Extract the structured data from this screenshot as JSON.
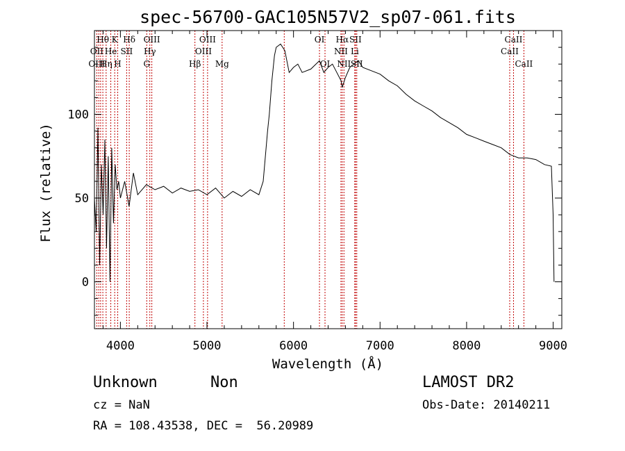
{
  "chart_data": {
    "type": "line",
    "title": "spec-56700-GAC105N57V2_sp07-061.fits",
    "xlabel": "Wavelength (Å)",
    "ylabel": "Flux (relative)",
    "xlim": [
      3700,
      9100
    ],
    "ylim": [
      -28,
      150
    ],
    "x_ticks": [
      4000,
      5000,
      6000,
      7000,
      8000,
      9000
    ],
    "x_tick_labels": [
      "4000",
      "5000",
      "6000",
      "7000",
      "8000",
      "9000"
    ],
    "y_ticks": [
      0,
      50,
      100
    ],
    "y_tick_labels": [
      "0",
      "50",
      "100"
    ],
    "grid": false,
    "legend": "none",
    "line_color": "#000000",
    "marker_color": "#c00000",
    "series": [
      {
        "x": [
          3700,
          3720,
          3740,
          3760,
          3780,
          3800,
          3820,
          3840,
          3860,
          3880,
          3900,
          3920,
          3940,
          3960,
          3980,
          4000,
          4050,
          4100,
          4150,
          4200,
          4300,
          4400,
          4500,
          4600,
          4700,
          4800,
          4900,
          5000,
          5100,
          5200,
          5300,
          5400,
          5500,
          5600,
          5650,
          5700,
          5720,
          5750,
          5780,
          5800,
          5850,
          5900,
          5950,
          6000,
          6050,
          6100,
          6200,
          6300,
          6350,
          6400,
          6450,
          6500,
          6550,
          6563,
          6600,
          6650,
          6700,
          6750,
          6800,
          6900,
          7000,
          7100,
          7200,
          7300,
          7400,
          7500,
          7600,
          7700,
          7800,
          7900,
          8000,
          8100,
          8200,
          8300,
          8400,
          8500,
          8600,
          8700,
          8800,
          8900,
          8980,
          9000,
          9010
        ],
        "y": [
          50,
          30,
          92,
          10,
          70,
          40,
          85,
          20,
          75,
          0,
          80,
          35,
          70,
          55,
          60,
          50,
          60,
          45,
          65,
          52,
          58,
          55,
          57,
          53,
          56,
          54,
          55,
          52,
          56,
          50,
          54,
          51,
          55,
          52,
          60,
          90,
          100,
          120,
          135,
          140,
          142,
          138,
          125,
          128,
          130,
          125,
          127,
          132,
          125,
          128,
          130,
          125,
          120,
          116,
          122,
          128,
          130,
          132,
          128,
          126,
          124,
          120,
          117,
          112,
          108,
          105,
          102,
          98,
          95,
          92,
          88,
          86,
          84,
          82,
          80,
          76,
          74,
          74,
          73,
          70,
          69,
          40,
          0
        ]
      }
    ],
    "annotations": [
      {
        "label": "Hθ",
        "x": 3797,
        "row": 1
      },
      {
        "label": "OII",
        "x": 3727,
        "row": 2
      },
      {
        "label": "OIII",
        "x": 3727,
        "row": 3
      },
      {
        "label": "He",
        "x": 3889,
        "row": 2
      },
      {
        "label": "Hη",
        "x": 3835,
        "row": 3
      },
      {
        "label": "K",
        "x": 3934,
        "row": 1
      },
      {
        "label": "H",
        "x": 3969,
        "row": 3
      },
      {
        "label": "SII",
        "x": 4072,
        "row": 2
      },
      {
        "label": "Hδ",
        "x": 4102,
        "row": 1
      },
      {
        "label": "OIII",
        "x": 4363,
        "row": 1
      },
      {
        "label": "Hγ",
        "x": 4340,
        "row": 2
      },
      {
        "label": "G",
        "x": 4304,
        "row": 3
      },
      {
        "label": "Hβ",
        "x": 4861,
        "row": 3
      },
      {
        "label": "OIII",
        "x": 4959,
        "row": 2
      },
      {
        "label": "OIII",
        "x": 5007,
        "row": 1
      },
      {
        "label": "Mg",
        "x": 5175,
        "row": 3
      },
      {
        "label": "OI",
        "x": 6300,
        "row": 1
      },
      {
        "label": "OI",
        "x": 6364,
        "row": 3
      },
      {
        "label": "Hα",
        "x": 6563,
        "row": 1
      },
      {
        "label": "NII",
        "x": 6548,
        "row": 2
      },
      {
        "label": "NII",
        "x": 6583,
        "row": 3
      },
      {
        "label": "SII",
        "x": 6716,
        "row": 1
      },
      {
        "label": "Li",
        "x": 6708,
        "row": 2
      },
      {
        "label": "SII",
        "x": 6731,
        "row": 3
      },
      {
        "label": "CaII",
        "x": 8542,
        "row": 1
      },
      {
        "label": "CaII",
        "x": 8498,
        "row": 2
      },
      {
        "label": "CaII",
        "x": 8662,
        "row": 3
      }
    ],
    "marker_lines_x": [
      3727,
      3750,
      3771,
      3797,
      3835,
      3889,
      3934,
      3969,
      4072,
      4102,
      4304,
      4340,
      4363,
      4861,
      4959,
      5007,
      5175,
      5893,
      6300,
      6364,
      6548,
      6563,
      6583,
      6708,
      6716,
      6731,
      8498,
      8542,
      8662
    ]
  },
  "info": {
    "class": "Unknown",
    "subclass": "Non",
    "cz": "cz = NaN",
    "coords": "RA = 108.43538, DEC =  56.20989",
    "survey": "LAMOST DR2",
    "obs_date": "Obs-Date: 20140211"
  }
}
